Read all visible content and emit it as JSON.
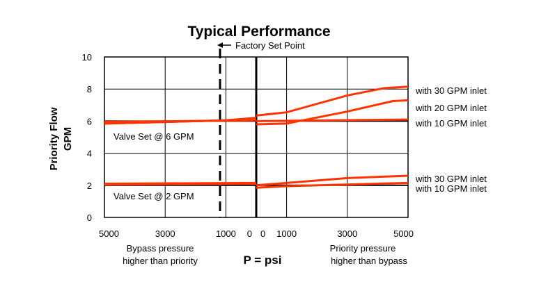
{
  "chart_data": {
    "type": "line",
    "title": "Typical Performance",
    "ylabel_line1": "Priority Flow",
    "ylabel_line2": "GPM",
    "xlabel": "P = psi",
    "ylim": [
      0,
      10
    ],
    "yticks": [
      "0",
      "2",
      "4",
      "6",
      "8",
      "10"
    ],
    "xticks_left": [
      "5000",
      "3000",
      "1000",
      "0"
    ],
    "xticks_right": [
      "0",
      "1000",
      "3000",
      "5000"
    ],
    "x_left_caption_line1": "Bypass pressure",
    "x_left_caption_line2": "higher than priority",
    "x_right_caption_line1": "Priority pressure",
    "x_right_caption_line2": "higher than bypass",
    "factory_set_point_label": "Factory Set Point",
    "factory_set_point_psi": 1000,
    "valve_labels": [
      "Valve Set @ 6 GPM",
      "Valve Set @ 2 GPM"
    ],
    "series": [
      {
        "name": "with 30 GPM inlet",
        "group": "6 GPM",
        "left": [
          [
            5000,
            5.85
          ],
          [
            1000,
            6.05
          ],
          [
            0,
            6.2
          ]
        ],
        "right": [
          [
            0,
            6.35
          ],
          [
            1000,
            6.55
          ],
          [
            3000,
            7.6
          ],
          [
            4200,
            8.05
          ],
          [
            5000,
            8.15
          ]
        ]
      },
      {
        "name": "with 20 GPM inlet",
        "group": "6 GPM",
        "left": [
          [
            5000,
            5.85
          ],
          [
            1000,
            6.05
          ],
          [
            0,
            6.2
          ]
        ],
        "right": [
          [
            0,
            5.8
          ],
          [
            1000,
            5.85
          ],
          [
            3000,
            6.6
          ],
          [
            4500,
            7.25
          ],
          [
            5000,
            7.3
          ]
        ]
      },
      {
        "name": "with 10 GPM inlet",
        "group": "6 GPM",
        "left": [
          [
            5000,
            5.95
          ],
          [
            0,
            6.05
          ]
        ],
        "right": [
          [
            0,
            6.0
          ],
          [
            5000,
            6.1
          ]
        ]
      },
      {
        "name": "with 30 GPM inlet",
        "group": "2 GPM",
        "left": [
          [
            5000,
            2.1
          ],
          [
            0,
            2.15
          ]
        ],
        "right": [
          [
            0,
            2.0
          ],
          [
            1000,
            2.15
          ],
          [
            3000,
            2.45
          ],
          [
            5000,
            2.6
          ]
        ]
      },
      {
        "name": "with 10 GPM inlet",
        "group": "2 GPM",
        "left": [
          [
            5000,
            2.05
          ],
          [
            0,
            2.1
          ]
        ],
        "right": [
          [
            0,
            1.85
          ],
          [
            1000,
            1.95
          ],
          [
            3000,
            2.05
          ],
          [
            5000,
            2.15
          ]
        ]
      }
    ],
    "colors": {
      "series": "#ff3300",
      "reference": "#000000",
      "grid": "#000000"
    }
  }
}
